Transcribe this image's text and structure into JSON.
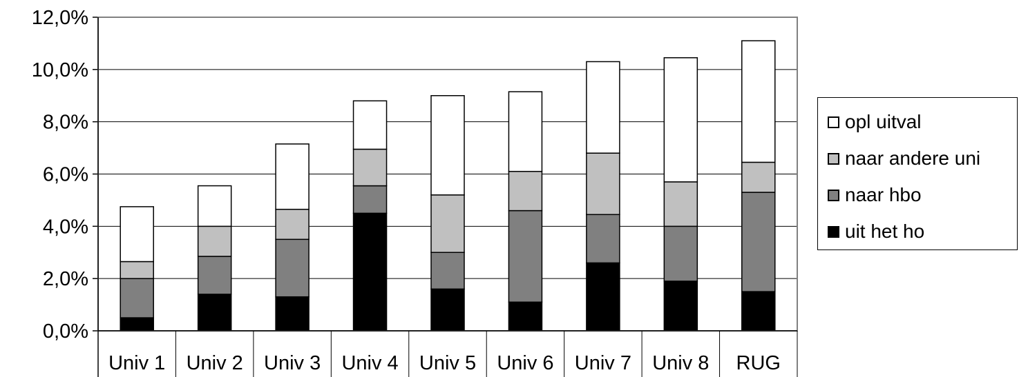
{
  "chart_data": {
    "type": "bar",
    "stacked": true,
    "categories": [
      "Univ 1",
      "Univ 2",
      "Univ 3",
      "Univ 4",
      "Univ 5",
      "Univ 6",
      "Univ 7",
      "Univ 8",
      "RUG"
    ],
    "series": [
      {
        "name": "uit het ho",
        "color": "#000000",
        "values": [
          0.5,
          1.4,
          1.3,
          4.5,
          1.6,
          1.1,
          2.6,
          1.9,
          1.5
        ]
      },
      {
        "name": "naar hbo",
        "color": "#808080",
        "values": [
          1.5,
          1.45,
          2.2,
          1.05,
          1.4,
          3.5,
          1.85,
          2.1,
          3.8
        ]
      },
      {
        "name": "naar andere uni",
        "color": "#c0c0c0",
        "values": [
          0.65,
          1.15,
          1.15,
          1.4,
          2.2,
          1.5,
          2.35,
          1.7,
          1.15
        ]
      },
      {
        "name": "opl uitval",
        "color": "#ffffff",
        "values": [
          2.1,
          1.55,
          2.5,
          1.85,
          3.8,
          3.05,
          3.5,
          4.75,
          4.65
        ]
      }
    ],
    "yticks": [
      "0,0%",
      "2,0%",
      "4,0%",
      "6,0%",
      "8,0%",
      "10,0%",
      "12,0%"
    ],
    "ylim": [
      0,
      12
    ],
    "grid": true,
    "legend_position": "right",
    "legend_order": [
      "opl uitval",
      "naar andere uni",
      "naar hbo",
      "uit het ho"
    ]
  }
}
